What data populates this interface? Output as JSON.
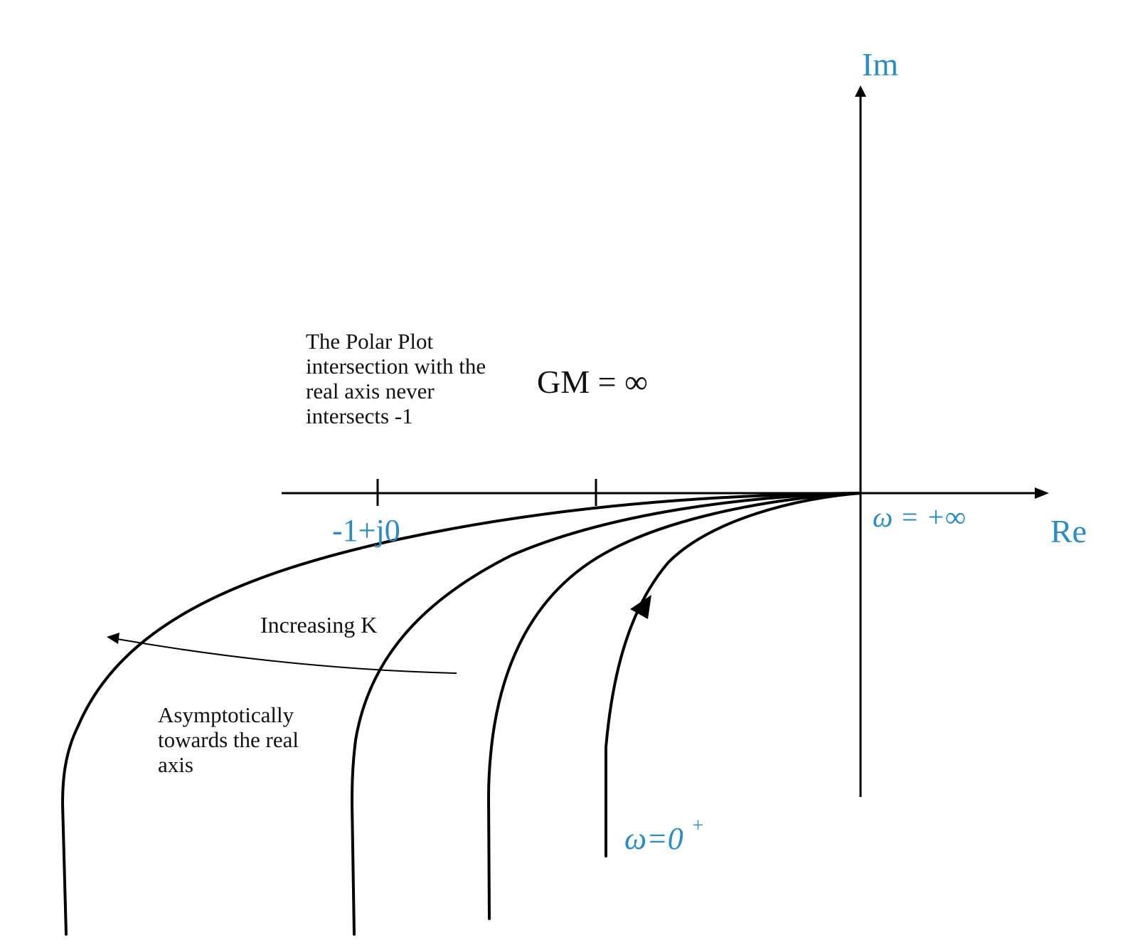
{
  "labels": {
    "im_axis": "Im",
    "re_axis": "Re",
    "minus_one": "-1+j0",
    "omega_infinity": "ω = +∞",
    "omega_zero": "ω=0",
    "omega_zero_sup": "+",
    "gain_margin": "GM = ∞",
    "increasing_k": "Increasing K",
    "note_polar_plot": [
      "The Polar Plot",
      "intersection with the",
      "real axis never",
      "intersects -1"
    ],
    "note_asymptotic": [
      "Asymptotically",
      "towards the real",
      "axis"
    ]
  },
  "colors": {
    "accent_blue": "#2a8cc7",
    "ink": "#000000"
  }
}
